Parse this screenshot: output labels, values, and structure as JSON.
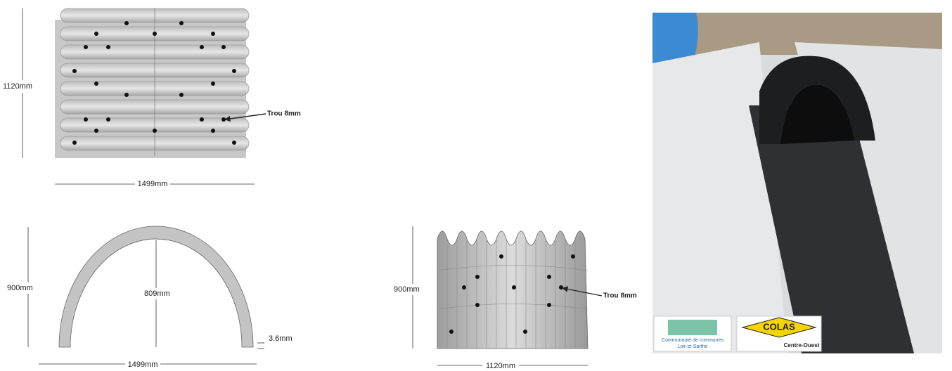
{
  "top_view": {
    "height_label": "1120mm",
    "width_label": "1499mm",
    "hole_label": "Trou 8mm"
  },
  "front_view": {
    "height_label": "900mm",
    "inner_height_label": "809mm",
    "thickness_label": "3.6mm",
    "width_label": "1499mm"
  },
  "side_view": {
    "height_label": "900mm",
    "width_label": "1120mm",
    "hole_label": "Trou 8mm"
  },
  "photo": {
    "logos": [
      {
        "lines": [
          "Communauté de communes",
          "Loir-et-Sarthe"
        ]
      },
      {
        "lines": [
          "COLAS",
          "Centre-Ouest"
        ]
      }
    ]
  }
}
